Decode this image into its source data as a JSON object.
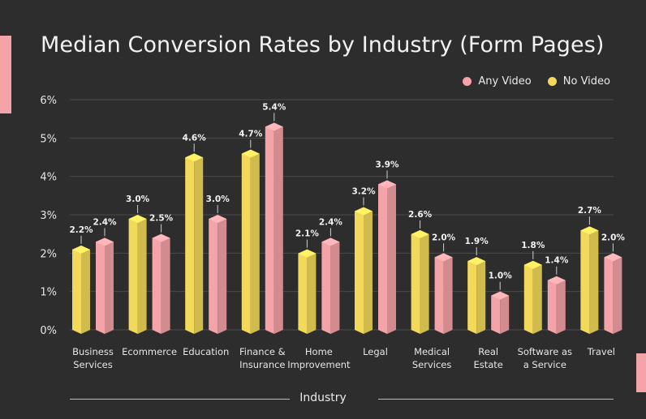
{
  "chart_data": {
    "type": "bar",
    "title": "Median Conversion Rates by Industry (Form Pages)",
    "xlabel": "Industry",
    "ylabel": "",
    "ylim": [
      0,
      6
    ],
    "yticks": [
      "0%",
      "1%",
      "2%",
      "3%",
      "4%",
      "5%",
      "6%"
    ],
    "grid": true,
    "legend_position": "top-right",
    "categories": [
      [
        "Business",
        "Services"
      ],
      [
        "Ecommerce"
      ],
      [
        "Education"
      ],
      [
        "Finance &",
        "Insurance"
      ],
      [
        "Home",
        "Improvement"
      ],
      [
        "Legal"
      ],
      [
        "Medical",
        "Services"
      ],
      [
        "Real",
        "Estate"
      ],
      [
        "Software as",
        "a Service"
      ],
      [
        "Travel"
      ]
    ],
    "series": [
      {
        "name": "No Video",
        "color": "#f3d95a",
        "values": [
          2.2,
          3.0,
          4.6,
          4.7,
          2.1,
          3.2,
          2.6,
          1.9,
          1.8,
          2.7
        ],
        "labels": [
          "2.2%",
          "3.0%",
          "4.6%",
          "4.7%",
          "2.1%",
          "3.2%",
          "2.6%",
          "1.9%",
          "1.8%",
          "2.7%"
        ]
      },
      {
        "name": "Any Video",
        "color": "#f4a3a8",
        "values": [
          2.4,
          2.5,
          3.0,
          5.4,
          2.4,
          3.9,
          2.0,
          1.0,
          1.4,
          2.0
        ],
        "labels": [
          "2.4%",
          "2.5%",
          "3.0%",
          "5.4%",
          "2.4%",
          "3.9%",
          "2.0%",
          "1.0%",
          "1.4%",
          "2.0%"
        ]
      }
    ],
    "legend": [
      {
        "name": "Any Video",
        "color": "#f4a3a8"
      },
      {
        "name": "No Video",
        "color": "#f3d95a"
      }
    ]
  }
}
